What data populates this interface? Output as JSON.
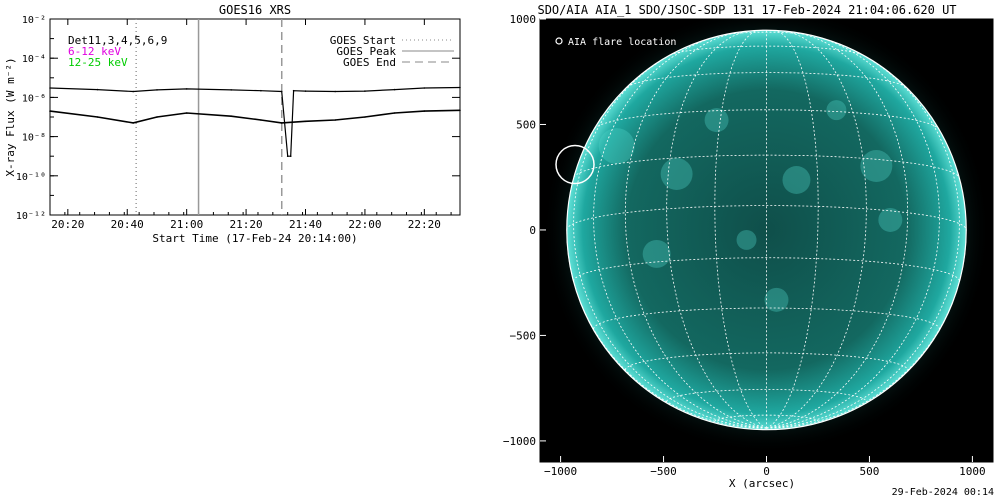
{
  "goes_panel": {
    "title": "GOES16 XRS",
    "ylabel": "X-ray Flux (W m⁻²)",
    "xlabel": "Start Time (17-Feb-24 20:14:00)",
    "det_label": "Det11,3,4,5,6,9",
    "band_labels": [
      {
        "text": "6-12 keV",
        "color": "#e000e0"
      },
      {
        "text": "12-25 keV",
        "color": "#00cc00"
      }
    ],
    "legend": [
      {
        "label": "GOES Start",
        "style": "dotted"
      },
      {
        "label": "GOES Peak",
        "style": "solid"
      },
      {
        "label": "GOES End",
        "style": "dashed"
      }
    ]
  },
  "aia_panel": {
    "title": "SDO/AIA AIA_1 SDO/JSOC-SDP 131 17-Feb-2024 21:04:06.620 UT",
    "xlabel": "X (arcsec)",
    "flare_label": "AIA flare location",
    "disk_color": "#1fa8a0"
  },
  "footer": {
    "timestamp": "29-Feb-2024 00:14"
  },
  "chart_data": [
    {
      "type": "line",
      "title": "GOES16 XRS",
      "xlabel": "Start Time (17-Feb-24 20:14:00)",
      "ylabel": "X-ray Flux (W m⁻²)",
      "yscale": "log",
      "ylim": [
        1e-12,
        0.01
      ],
      "xlim": [
        "20:14",
        "22:32"
      ],
      "xticks": [
        "20:20",
        "20:40",
        "21:00",
        "21:20",
        "21:40",
        "22:00",
        "22:20"
      ],
      "yticks": [
        "10⁻¹²",
        "10⁻¹⁰",
        "10⁻⁸",
        "10⁻⁶",
        "10⁻⁴",
        "10⁻²"
      ],
      "series": [
        {
          "name": "upper",
          "x": [
            "20:14",
            "20:30",
            "20:42",
            "20:50",
            "21:00",
            "21:15",
            "21:25",
            "21:32",
            "21:34",
            "21:35",
            "21:36",
            "21:40",
            "21:50",
            "22:00",
            "22:10",
            "22:20",
            "22:32"
          ],
          "y": [
            3e-06,
            2.5e-06,
            2e-06,
            2.4e-06,
            2.7e-06,
            2.4e-06,
            2.2e-06,
            2e-06,
            1e-09,
            1e-09,
            2.2e-06,
            2.1e-06,
            2e-06,
            2.1e-06,
            2.5e-06,
            3e-06,
            3.2e-06
          ]
        },
        {
          "name": "lower",
          "x": [
            "20:14",
            "20:30",
            "20:42",
            "20:50",
            "21:00",
            "21:15",
            "21:25",
            "21:32",
            "21:40",
            "21:50",
            "22:00",
            "22:10",
            "22:20",
            "22:32"
          ],
          "y": [
            2e-07,
            1e-07,
            5e-08,
            1e-07,
            1.6e-07,
            1.1e-07,
            7e-08,
            5e-08,
            6e-08,
            7e-08,
            1e-07,
            1.6e-07,
            2e-07,
            2.2e-07
          ]
        }
      ],
      "markers": [
        {
          "label": "GOES Start",
          "x": "20:43",
          "style": "dotted"
        },
        {
          "label": "GOES Peak",
          "x": "21:04",
          "style": "solid"
        },
        {
          "label": "GOES End",
          "x": "21:32",
          "style": "dashed"
        }
      ]
    },
    {
      "type": "scatter",
      "title": "SDO/AIA AIA_1 SDO/JSOC-SDP 131 17-Feb-2024 21:04:06.620 UT",
      "xlabel": "X (arcsec)",
      "xlim": [
        -1100,
        1100
      ],
      "ylim": [
        -1100,
        1000
      ],
      "xticks": [
        -1000,
        -500,
        0,
        500,
        1000
      ],
      "yticks": [
        -1000,
        -500,
        0,
        500,
        1000
      ],
      "solar_radius_arcsec": 970,
      "flare_location": {
        "x": -930,
        "y": 310
      }
    }
  ]
}
